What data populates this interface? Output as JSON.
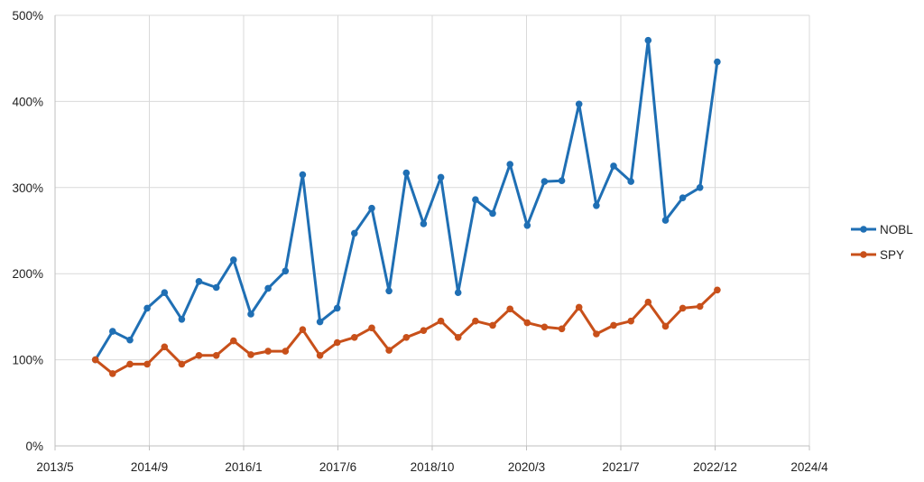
{
  "chart_data": {
    "type": "line",
    "title": "",
    "xlabel": "",
    "ylabel": "",
    "x_tick_labels": [
      "2013/5",
      "2014/9",
      "2016/1",
      "2017/6",
      "2018/10",
      "2020/3",
      "2021/7",
      "2022/12",
      "2024/4"
    ],
    "y_tick_labels": [
      "0%",
      "100%",
      "200%",
      "300%",
      "400%",
      "500%"
    ],
    "y_ticks": [
      0,
      100,
      200,
      300,
      400,
      500
    ],
    "xlim": [
      "2013-05",
      "2024-04"
    ],
    "ylim": [
      0,
      500
    ],
    "grid": true,
    "legend_position": "right",
    "x": [
      "2013-12",
      "2014-03",
      "2014-06",
      "2014-09",
      "2014-12",
      "2015-03",
      "2015-06",
      "2015-09",
      "2015-12",
      "2016-03",
      "2016-06",
      "2016-09",
      "2016-12",
      "2017-03",
      "2017-06",
      "2017-09",
      "2017-12",
      "2018-03",
      "2018-06",
      "2018-09",
      "2018-12",
      "2019-03",
      "2019-06",
      "2019-09",
      "2019-12",
      "2020-03",
      "2020-06",
      "2020-09",
      "2020-12",
      "2021-03",
      "2021-06",
      "2021-09",
      "2021-12",
      "2022-03",
      "2022-06",
      "2022-09",
      "2022-12"
    ],
    "series": [
      {
        "name": "NOBL",
        "color": "#1f6fb4",
        "values": [
          100,
          133,
          123,
          160,
          178,
          147,
          191,
          184,
          216,
          153,
          183,
          203,
          315,
          144,
          160,
          247,
          276,
          180,
          317,
          258,
          312,
          178,
          286,
          270,
          327,
          256,
          307,
          308,
          397,
          279,
          325,
          307,
          471,
          262,
          288,
          300,
          446
        ]
      },
      {
        "name": "SPY",
        "color": "#c8501a",
        "values": [
          100,
          84,
          95,
          95,
          115,
          95,
          105,
          105,
          122,
          106,
          110,
          110,
          135,
          105,
          120,
          126,
          137,
          111,
          126,
          134,
          145,
          126,
          145,
          140,
          159,
          143,
          138,
          136,
          161,
          130,
          140,
          145,
          167,
          139,
          160,
          162,
          181
        ]
      }
    ]
  }
}
